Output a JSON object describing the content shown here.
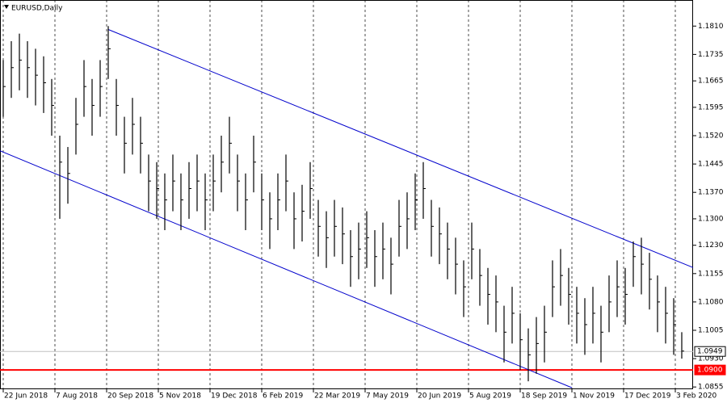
{
  "chart_data": {
    "type": "ohlc",
    "title": "EURUSD,Daily",
    "color": "#000000",
    "x": [
      0,
      5,
      10,
      15,
      20,
      25,
      30,
      35,
      40,
      45,
      50,
      55,
      60,
      65,
      70,
      75,
      80,
      85,
      90,
      95,
      100,
      105,
      110,
      115,
      120,
      125,
      130,
      135,
      140,
      145,
      150,
      155,
      160,
      165,
      170,
      175,
      180,
      185,
      190,
      195,
      200,
      205,
      210,
      215,
      220,
      225,
      230,
      235,
      240,
      245,
      250,
      255,
      260,
      265,
      270,
      275,
      280,
      285,
      290,
      295,
      300,
      305,
      310,
      315,
      320,
      325,
      330,
      335,
      340,
      345,
      350,
      355,
      360,
      365,
      370,
      375,
      380,
      385,
      390,
      395,
      400,
      405,
      410,
      415,
      420
    ],
    "high": [
      1.172,
      1.177,
      1.179,
      1.177,
      1.175,
      1.173,
      1.167,
      1.152,
      1.149,
      1.162,
      1.172,
      1.167,
      1.172,
      1.181,
      1.167,
      1.157,
      1.162,
      1.157,
      1.147,
      1.145,
      1.142,
      1.147,
      1.142,
      1.145,
      1.147,
      1.142,
      1.147,
      1.152,
      1.157,
      1.147,
      1.142,
      1.152,
      1.142,
      1.137,
      1.142,
      1.147,
      1.137,
      1.139,
      1.145,
      1.135,
      1.132,
      1.135,
      1.133,
      1.127,
      1.129,
      1.132,
      1.127,
      1.129,
      1.125,
      1.135,
      1.137,
      1.142,
      1.145,
      1.135,
      1.133,
      1.129,
      1.125,
      1.119,
      1.129,
      1.122,
      1.117,
      1.115,
      1.107,
      1.112,
      1.105,
      1.101,
      1.104,
      1.107,
      1.119,
      1.122,
      1.117,
      1.112,
      1.109,
      1.112,
      1.107,
      1.115,
      1.119,
      1.117,
      1.124,
      1.125,
      1.121,
      1.115,
      1.112,
      1.109,
      1.1
    ],
    "low": [
      1.157,
      1.162,
      1.164,
      1.162,
      1.16,
      1.158,
      1.152,
      1.13,
      1.134,
      1.147,
      1.157,
      1.152,
      1.157,
      1.167,
      1.152,
      1.142,
      1.147,
      1.142,
      1.132,
      1.13,
      1.127,
      1.132,
      1.127,
      1.13,
      1.132,
      1.127,
      1.132,
      1.137,
      1.142,
      1.132,
      1.127,
      1.137,
      1.127,
      1.122,
      1.127,
      1.132,
      1.122,
      1.124,
      1.13,
      1.12,
      1.117,
      1.12,
      1.118,
      1.112,
      1.114,
      1.117,
      1.112,
      1.114,
      1.11,
      1.12,
      1.122,
      1.127,
      1.13,
      1.12,
      1.118,
      1.114,
      1.11,
      1.104,
      1.114,
      1.107,
      1.102,
      1.1,
      1.092,
      1.097,
      1.09,
      1.087,
      1.089,
      1.092,
      1.104,
      1.107,
      1.102,
      1.097,
      1.094,
      1.097,
      1.092,
      1.1,
      1.104,
      1.102,
      1.112,
      1.11,
      1.106,
      1.1,
      1.097,
      1.094,
      1.093
    ],
    "close": [
      1.165,
      1.17,
      1.172,
      1.17,
      1.168,
      1.166,
      1.16,
      1.145,
      1.142,
      1.155,
      1.165,
      1.16,
      1.165,
      1.175,
      1.16,
      1.15,
      1.155,
      1.15,
      1.14,
      1.138,
      1.135,
      1.14,
      1.135,
      1.138,
      1.14,
      1.135,
      1.14,
      1.145,
      1.15,
      1.14,
      1.135,
      1.145,
      1.135,
      1.13,
      1.135,
      1.14,
      1.13,
      1.132,
      1.138,
      1.128,
      1.125,
      1.128,
      1.126,
      1.12,
      1.122,
      1.125,
      1.12,
      1.122,
      1.118,
      1.128,
      1.13,
      1.135,
      1.138,
      1.128,
      1.126,
      1.122,
      1.118,
      1.112,
      1.122,
      1.115,
      1.11,
      1.108,
      1.1,
      1.105,
      1.098,
      1.094,
      1.097,
      1.1,
      1.112,
      1.115,
      1.11,
      1.105,
      1.102,
      1.105,
      1.1,
      1.108,
      1.112,
      1.11,
      1.12,
      1.118,
      1.114,
      1.108,
      1.105,
      1.102,
      1.095
    ],
    "xlim": [
      -2,
      427
    ],
    "ylim": [
      1.0849,
      1.1879
    ],
    "xticks": [
      {
        "value": 0,
        "label": "22 Jun 2018"
      },
      {
        "value": 32,
        "label": "7 Aug 2018"
      },
      {
        "value": 64,
        "label": "20 Sep 2018"
      },
      {
        "value": 96,
        "label": "5 Nov 2018"
      },
      {
        "value": 128,
        "label": "19 Dec 2018"
      },
      {
        "value": 160,
        "label": "6 Feb 2019"
      },
      {
        "value": 192,
        "label": "22 Mar 2019"
      },
      {
        "value": 224,
        "label": "7 May 2019"
      },
      {
        "value": 256,
        "label": "20 Jun 2019"
      },
      {
        "value": 288,
        "label": "5 Aug 2019"
      },
      {
        "value": 320,
        "label": "18 Sep 2019"
      },
      {
        "value": 352,
        "label": "1 Nov 2019"
      },
      {
        "value": 384,
        "label": "17 Dec 2019"
      },
      {
        "value": 416,
        "label": "3 Feb 2020"
      }
    ],
    "yticks": [
      {
        "value": 1.181,
        "label": "1.1810"
      },
      1.1735,
      1.1665,
      1.1595,
      {
        "value": 1.152,
        "label": "1.1520"
      },
      1.1445,
      {
        "value": 1.137,
        "label": "1.1370"
      },
      {
        "value": 1.13,
        "label": "1.1300"
      },
      {
        "value": 1.123,
        "label": "1.1230"
      },
      1.1155,
      {
        "value": 1.108,
        "label": "1.1080"
      },
      1.1005,
      {
        "value": 1.093,
        "label": "1.0930"
      },
      1.0855
    ],
    "grid": true,
    "trendlines": [
      {
        "color": "#0000cc",
        "x": [
          65,
          427
        ],
        "y": [
          1.1801,
          1.1171
        ]
      },
      {
        "color": "#0000cc",
        "x": [
          -2,
          352
        ],
        "y": [
          1.148,
          1.0853
        ]
      }
    ],
    "levels": [
      {
        "color": "#ff0000",
        "value": 1.09,
        "label": "1.0900"
      },
      {
        "color": "#c0c0c0",
        "value": 1.0949
      }
    ]
  }
}
